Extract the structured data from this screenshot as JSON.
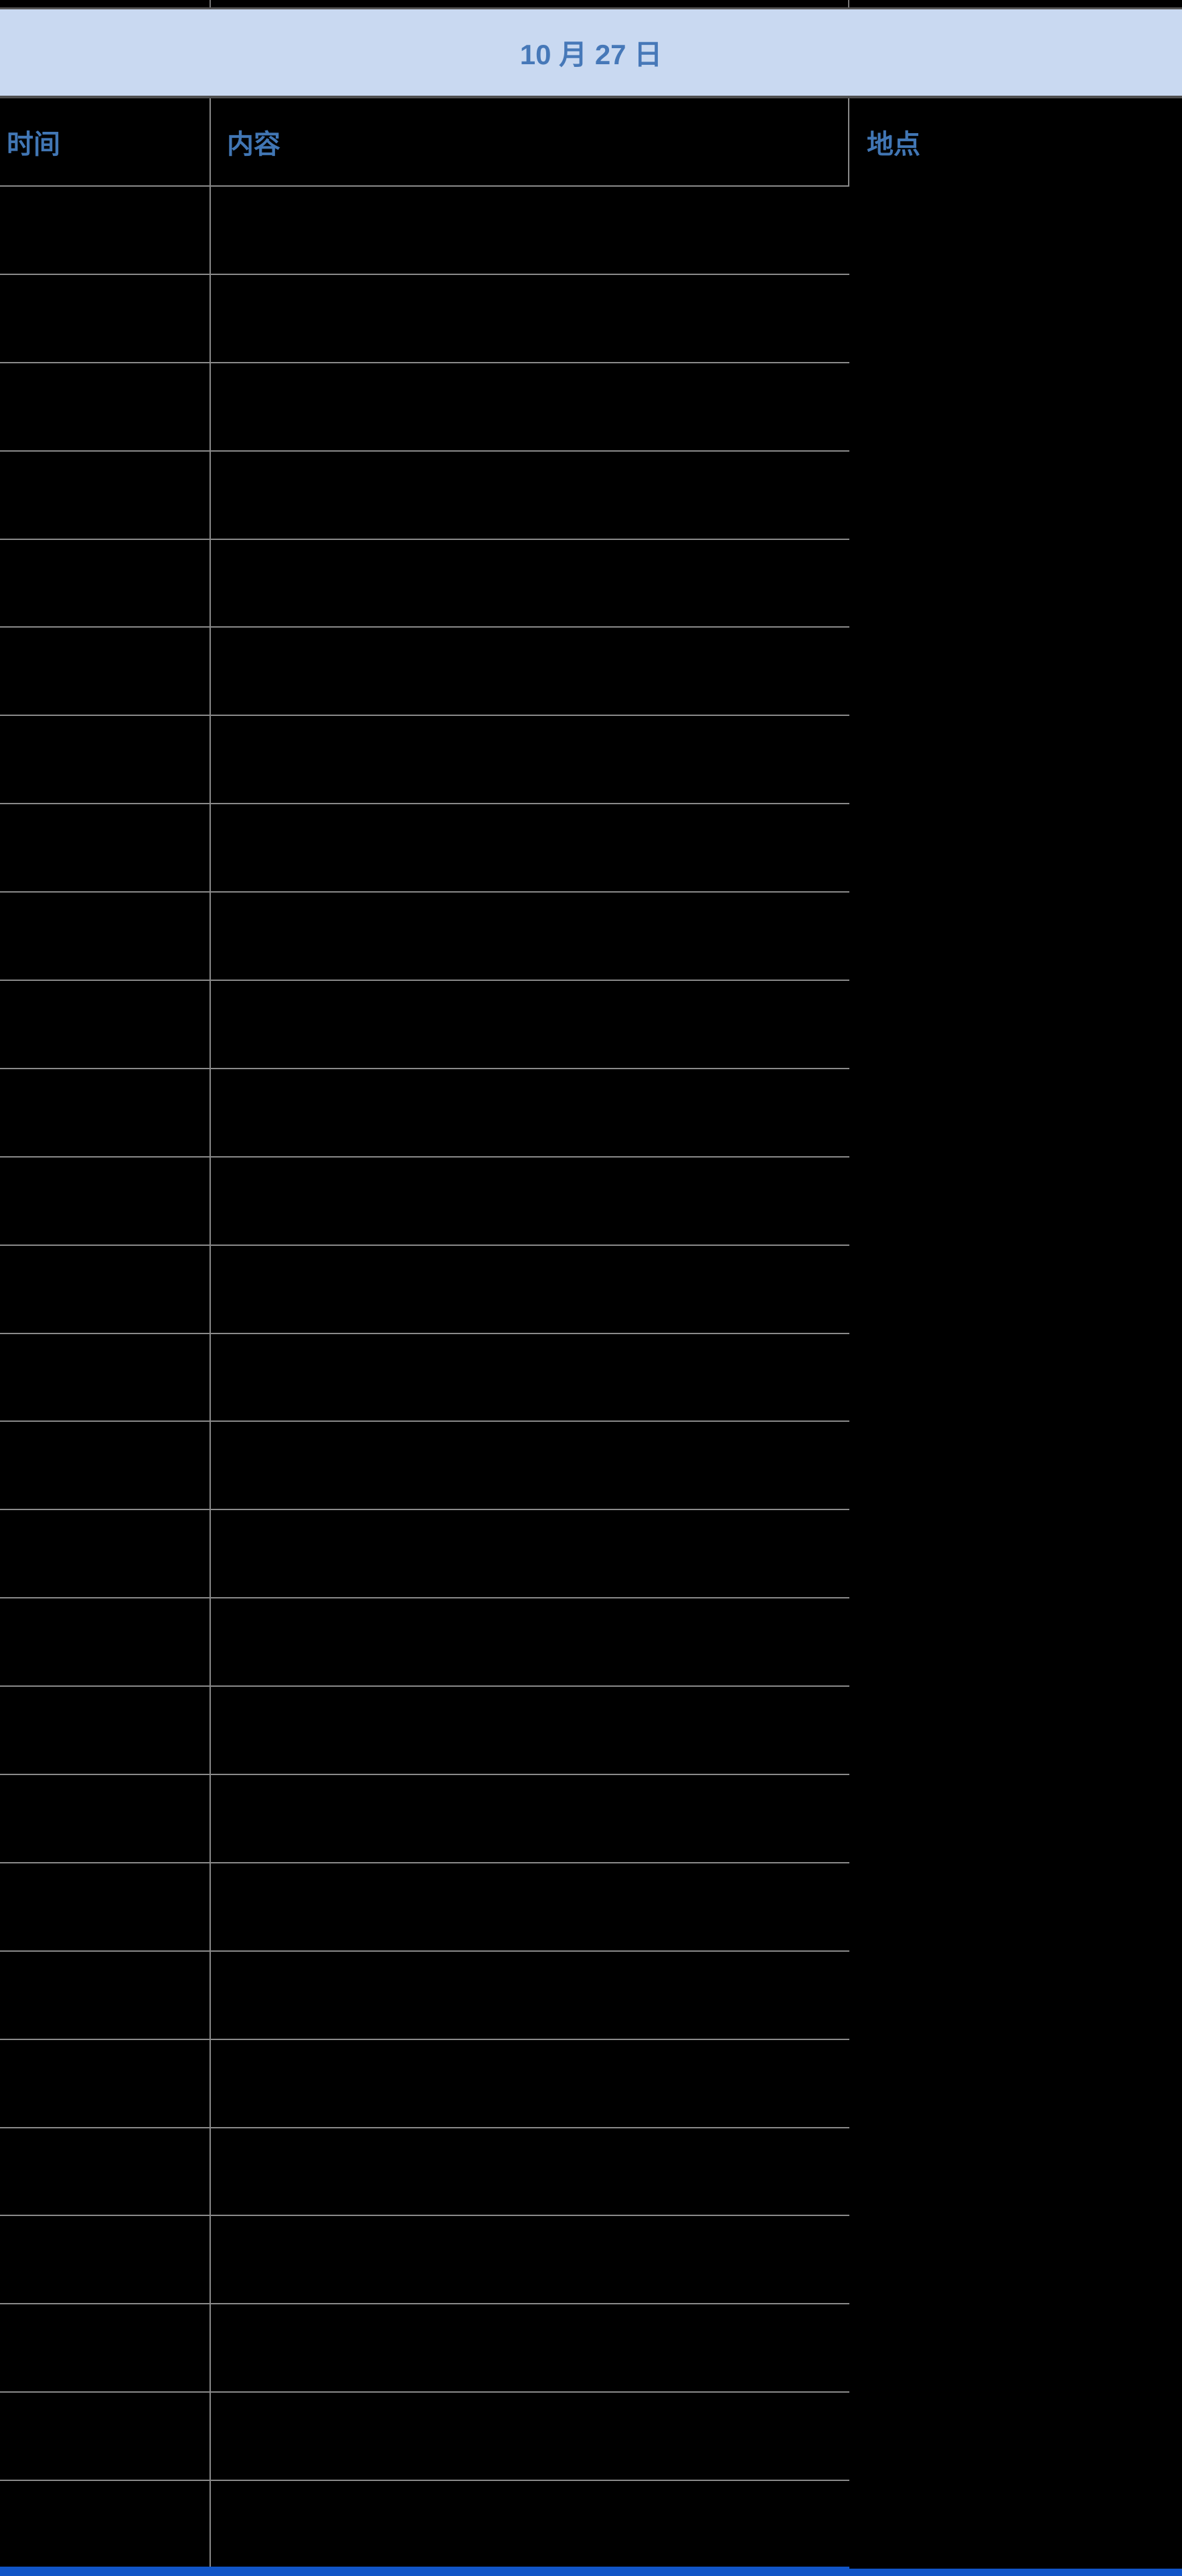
{
  "banner": {
    "date_label": "10 月 27 日"
  },
  "table": {
    "columns": [
      {
        "key": "time",
        "label": "时间"
      },
      {
        "key": "content",
        "label": "内容"
      },
      {
        "key": "location",
        "label": "地点"
      }
    ],
    "rows": [
      {
        "time": "",
        "content": "",
        "location": ""
      },
      {
        "time": "",
        "content": "",
        "location": ""
      },
      {
        "time": "",
        "content": "",
        "location": ""
      },
      {
        "time": "",
        "content": "",
        "location": ""
      },
      {
        "time": "",
        "content": "",
        "location": ""
      },
      {
        "time": "",
        "content": "",
        "location": ""
      },
      {
        "time": "",
        "content": "",
        "location": ""
      },
      {
        "time": "",
        "content": "",
        "location": ""
      },
      {
        "time": "",
        "content": "",
        "location": ""
      },
      {
        "time": "",
        "content": "",
        "location": ""
      },
      {
        "time": "",
        "content": "",
        "location": ""
      },
      {
        "time": "",
        "content": "",
        "location": ""
      },
      {
        "time": "",
        "content": "",
        "location": ""
      },
      {
        "time": "",
        "content": "",
        "location": ""
      },
      {
        "time": "",
        "content": "",
        "location": ""
      },
      {
        "time": "",
        "content": "",
        "location": ""
      },
      {
        "time": "",
        "content": "",
        "location": ""
      },
      {
        "time": "",
        "content": "",
        "location": ""
      },
      {
        "time": "",
        "content": "",
        "location": ""
      },
      {
        "time": "",
        "content": "",
        "location": ""
      },
      {
        "time": "",
        "content": "",
        "location": ""
      },
      {
        "time": "",
        "content": "",
        "location": ""
      },
      {
        "time": "",
        "content": "",
        "location": ""
      },
      {
        "time": "",
        "content": "",
        "location": ""
      },
      {
        "time": "",
        "content": "",
        "location": ""
      },
      {
        "time": "",
        "content": "",
        "location": ""
      },
      {
        "time": "",
        "content": "",
        "location": ""
      }
    ]
  },
  "colors": {
    "banner_bg": "#c9d9f1",
    "banner_text": "#4678b8",
    "header_text": "#4176b4",
    "grid": "#8a8a8a",
    "frame_border": "#555555",
    "bottom_bar": "#1155c7"
  }
}
